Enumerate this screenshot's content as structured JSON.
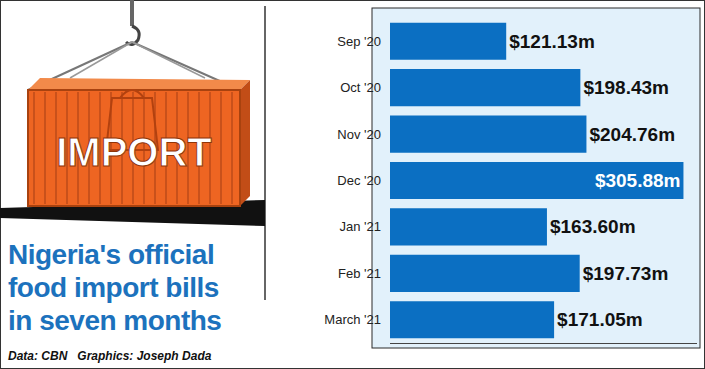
{
  "chart_data": {
    "type": "bar",
    "orientation": "horizontal",
    "title": "Nigeria's official\nfood import bills\nin seven months",
    "annotations": [
      "IMPORT",
      "Data: CBN   Graphics: Joseph Dada"
    ],
    "categories": [
      "Sep '20",
      "Oct '20",
      "Nov '20",
      "Dec '20",
      "Jan '21",
      "Feb '21",
      "March '21"
    ],
    "values": [
      121.13,
      198.43,
      204.76,
      305.88,
      163.6,
      197.73,
      171.05
    ],
    "value_labels": [
      "$121.13m",
      "$198.43m",
      "$204.76m",
      "$305.88m",
      "$163.60m",
      "$197.73m",
      "$171.05m"
    ],
    "color": "#0b6fc2",
    "xlim": [
      0,
      320
    ],
    "xticks": [],
    "grid": false,
    "data_labels": true,
    "tick_labels": "y"
  }
}
